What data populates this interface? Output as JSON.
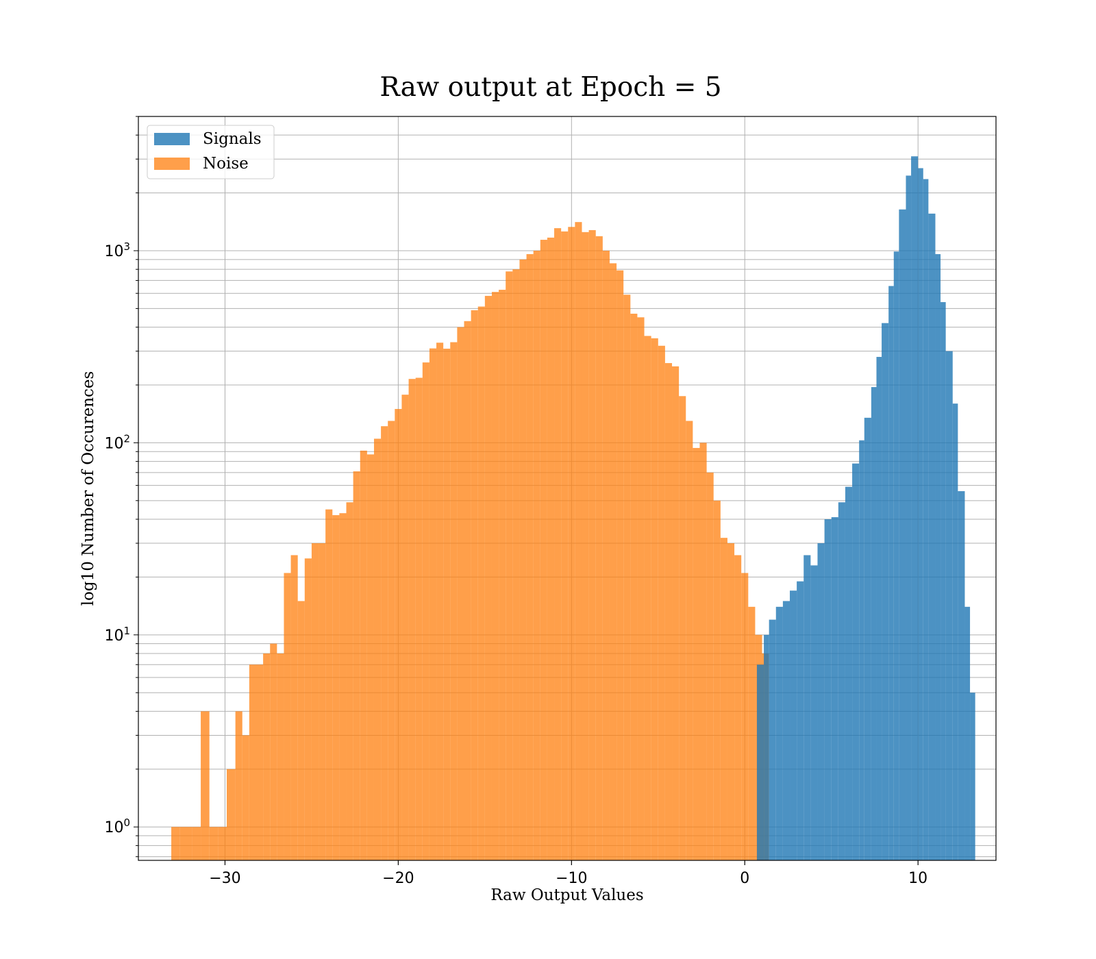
{
  "chart_data": {
    "type": "bar",
    "title": "Raw output at Epoch = 5",
    "xlabel": "Raw Output Values",
    "ylabel": "log10 Number of Occurences",
    "xlim": [
      -35,
      14.5
    ],
    "ylim": [
      0.67,
      5000
    ],
    "yscale": "log",
    "grid": true,
    "legend_position": "upper-left",
    "x_ticks": [
      -30,
      -20,
      -10,
      0,
      10
    ],
    "x_tick_labels": [
      "−30",
      "−20",
      "−10",
      "0",
      "10"
    ],
    "y_ticks": [
      {
        "value": 1,
        "mantissa": "10",
        "exp": "0"
      },
      {
        "value": 10,
        "mantissa": "10",
        "exp": "1"
      },
      {
        "value": 100,
        "mantissa": "10",
        "exp": "2"
      },
      {
        "value": 1000,
        "mantissa": "10",
        "exp": "3"
      }
    ],
    "series": [
      {
        "name": "Noise",
        "color": "#ff7f0e",
        "opacity": 0.75,
        "bins": [
          [
            -33.1,
            1
          ],
          [
            -32.6,
            1
          ],
          [
            -31.9,
            1
          ],
          [
            -31.4,
            4
          ],
          [
            -30.9,
            1
          ],
          [
            -30.4,
            1
          ],
          [
            -29.9,
            2
          ],
          [
            -29.4,
            4
          ],
          [
            -29.0,
            3
          ],
          [
            -28.6,
            7
          ],
          [
            -28.2,
            7
          ],
          [
            -27.8,
            8
          ],
          [
            -27.4,
            9
          ],
          [
            -27.0,
            8
          ],
          [
            -26.6,
            21
          ],
          [
            -26.2,
            26
          ],
          [
            -25.8,
            15
          ],
          [
            -25.4,
            25
          ],
          [
            -25.0,
            30
          ],
          [
            -24.6,
            30
          ],
          [
            -24.2,
            45
          ],
          [
            -23.8,
            42
          ],
          [
            -23.4,
            43
          ],
          [
            -23.0,
            49
          ],
          [
            -22.6,
            71
          ],
          [
            -22.2,
            91
          ],
          [
            -21.8,
            87
          ],
          [
            -21.4,
            105
          ],
          [
            -21.0,
            122
          ],
          [
            -20.6,
            130
          ],
          [
            -20.2,
            150
          ],
          [
            -19.8,
            178
          ],
          [
            -19.4,
            215
          ],
          [
            -19.0,
            218
          ],
          [
            -18.6,
            262
          ],
          [
            -18.2,
            310
          ],
          [
            -17.8,
            332
          ],
          [
            -17.4,
            309
          ],
          [
            -17.0,
            334
          ],
          [
            -16.6,
            400
          ],
          [
            -16.2,
            430
          ],
          [
            -15.8,
            490
          ],
          [
            -15.4,
            512
          ],
          [
            -15.0,
            582
          ],
          [
            -14.6,
            610
          ],
          [
            -14.2,
            626
          ],
          [
            -13.8,
            780
          ],
          [
            -13.4,
            800
          ],
          [
            -13.0,
            900
          ],
          [
            -12.6,
            960
          ],
          [
            -12.2,
            1000
          ],
          [
            -11.8,
            1140
          ],
          [
            -11.4,
            1170
          ],
          [
            -11.0,
            1310
          ],
          [
            -10.6,
            1260
          ],
          [
            -10.2,
            1330
          ],
          [
            -9.8,
            1410
          ],
          [
            -9.4,
            1250
          ],
          [
            -9.0,
            1280
          ],
          [
            -8.6,
            1190
          ],
          [
            -8.2,
            1000
          ],
          [
            -7.8,
            860
          ],
          [
            -7.4,
            790
          ],
          [
            -7.0,
            590
          ],
          [
            -6.6,
            470
          ],
          [
            -6.2,
            450
          ],
          [
            -5.8,
            360
          ],
          [
            -5.4,
            350
          ],
          [
            -5.0,
            320
          ],
          [
            -4.6,
            260
          ],
          [
            -4.2,
            250
          ],
          [
            -3.8,
            175
          ],
          [
            -3.4,
            130
          ],
          [
            -3.0,
            94
          ],
          [
            -2.6,
            100
          ],
          [
            -2.2,
            70
          ],
          [
            -1.8,
            50
          ],
          [
            -1.4,
            32
          ],
          [
            -1.0,
            30
          ],
          [
            -0.6,
            26
          ],
          [
            -0.2,
            21
          ],
          [
            0.2,
            14
          ],
          [
            0.6,
            10
          ],
          [
            1.0,
            8
          ]
        ]
      },
      {
        "name": "Signals",
        "color": "#1f77b4",
        "opacity": 0.8,
        "bins": [
          [
            0.7,
            7
          ],
          [
            1.1,
            10
          ],
          [
            1.4,
            12
          ],
          [
            1.8,
            14
          ],
          [
            2.2,
            15
          ],
          [
            2.6,
            17
          ],
          [
            3.0,
            19
          ],
          [
            3.4,
            26
          ],
          [
            3.8,
            23
          ],
          [
            4.2,
            30
          ],
          [
            4.6,
            40
          ],
          [
            5.0,
            41
          ],
          [
            5.4,
            49
          ],
          [
            5.8,
            59
          ],
          [
            6.2,
            78
          ],
          [
            6.6,
            103
          ],
          [
            6.9,
            135
          ],
          [
            7.3,
            195
          ],
          [
            7.6,
            280
          ],
          [
            7.9,
            420
          ],
          [
            8.3,
            655
          ],
          [
            8.6,
            990
          ],
          [
            8.9,
            1640
          ],
          [
            9.3,
            2460
          ],
          [
            9.6,
            3100
          ],
          [
            10.0,
            2690
          ],
          [
            10.3,
            2360
          ],
          [
            10.6,
            1560
          ],
          [
            11.0,
            960
          ],
          [
            11.3,
            540
          ],
          [
            11.6,
            300
          ],
          [
            12.0,
            160
          ],
          [
            12.3,
            56
          ],
          [
            12.7,
            14
          ],
          [
            13.0,
            5
          ]
        ]
      }
    ]
  }
}
